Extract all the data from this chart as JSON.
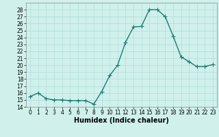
{
  "x": [
    0,
    1,
    2,
    3,
    4,
    5,
    6,
    7,
    8,
    9,
    10,
    11,
    12,
    13,
    14,
    15,
    16,
    17,
    18,
    19,
    20,
    21,
    22,
    23
  ],
  "y": [
    15.5,
    16.0,
    15.2,
    15.0,
    15.0,
    14.9,
    14.9,
    14.9,
    14.4,
    16.2,
    18.5,
    20.0,
    23.3,
    25.5,
    25.6,
    28.0,
    28.0,
    27.0,
    24.2,
    21.2,
    20.5,
    19.8,
    19.8,
    20.1
  ],
  "line_color": "#1a7a6e",
  "marker_color": "#1a7a6e",
  "bg_color": "#d0f0ec",
  "grid_color": "#b0ddd8",
  "xlabel": "Humidex (Indice chaleur)",
  "ylim": [
    14,
    29
  ],
  "xlim": [
    -0.5,
    23.5
  ],
  "yticks": [
    14,
    15,
    16,
    17,
    18,
    19,
    20,
    21,
    22,
    23,
    24,
    25,
    26,
    27,
    28
  ],
  "xticks": [
    0,
    1,
    2,
    3,
    4,
    5,
    6,
    7,
    8,
    9,
    10,
    11,
    12,
    13,
    14,
    15,
    16,
    17,
    18,
    19,
    20,
    21,
    22,
    23
  ],
  "tick_fontsize": 5.5,
  "label_fontsize": 7,
  "linewidth": 1.0,
  "markersize": 2.0
}
